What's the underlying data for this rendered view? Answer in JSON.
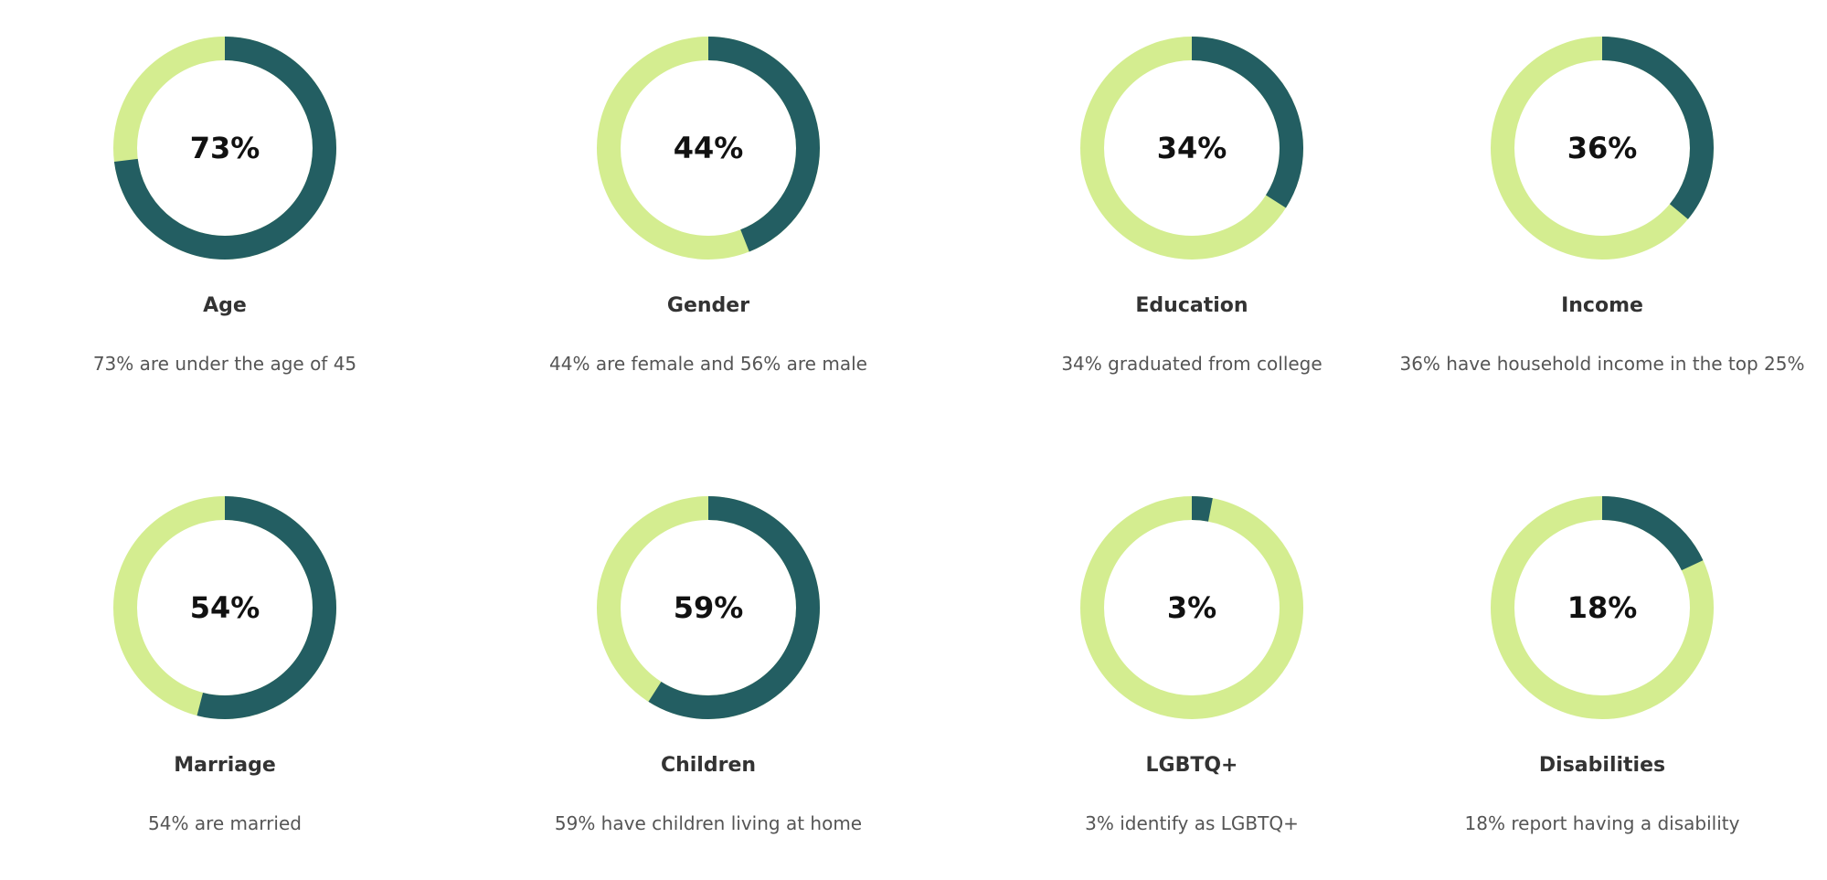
{
  "colors": {
    "filled": "#235e62",
    "remainder": "#d4ed90"
  },
  "chart_data": [
    {
      "type": "pie",
      "variant": "donut",
      "value_label": "73%",
      "values": [
        73,
        27
      ],
      "title": "Age",
      "description": "73% are under the age of 45"
    },
    {
      "type": "pie",
      "variant": "donut",
      "value_label": "44%",
      "values": [
        44,
        56
      ],
      "title": "Gender",
      "description": "44% are female and 56% are male"
    },
    {
      "type": "pie",
      "variant": "donut",
      "value_label": "34%",
      "values": [
        34,
        66
      ],
      "title": "Education",
      "description": "34% graduated from college"
    },
    {
      "type": "pie",
      "variant": "donut",
      "value_label": "36%",
      "values": [
        36,
        64
      ],
      "title": "Income",
      "description": "36% have household income in the top 25%"
    },
    {
      "type": "pie",
      "variant": "donut",
      "value_label": "54%",
      "values": [
        54,
        46
      ],
      "title": "Marriage",
      "description": "54% are married"
    },
    {
      "type": "pie",
      "variant": "donut",
      "value_label": "59%",
      "values": [
        59,
        41
      ],
      "title": "Children",
      "description": "59% have children living at home"
    },
    {
      "type": "pie",
      "variant": "donut",
      "value_label": "3%",
      "values": [
        3,
        97
      ],
      "title": "LGBTQ+",
      "description": "3% identify as LGBTQ+"
    },
    {
      "type": "pie",
      "variant": "donut",
      "value_label": "18%",
      "values": [
        18,
        82
      ],
      "title": "Disabilities",
      "description": "18% report having a disability"
    }
  ]
}
